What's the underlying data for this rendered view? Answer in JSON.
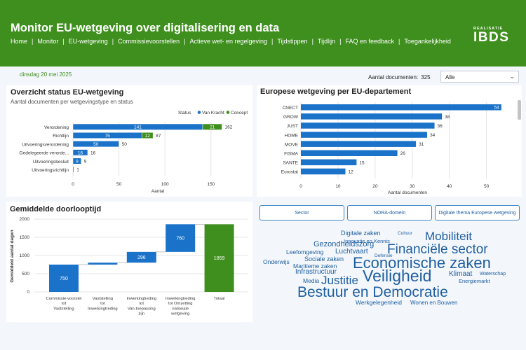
{
  "header": {
    "title": "Monitor EU-wetgeving over digitalisering en data",
    "nav": [
      "Home",
      "Monitor",
      "EU-wetgeving",
      "Commissievoorstellen",
      "Actieve wet- en regelgeving",
      "Tijdstippen",
      "Tijdlijn",
      "FAQ en feedback",
      "Toegankelijkheid"
    ],
    "logo_small": "REALISATIE",
    "logo_big": "IBDS"
  },
  "date": "dinsdag 20 mei 2025",
  "doc_count": {
    "label": "Aantal documenten:",
    "value": "325"
  },
  "filter": {
    "selected": "Alle"
  },
  "status_panel": {
    "title": "Overzicht status EU-wetgeving",
    "subtitle": "Aantal documenten per wetgevingstype en status",
    "legend_title": "Status",
    "xlabel": "Aantal"
  },
  "dept_panel": {
    "title": "Europese wetgeving per EU-departement",
    "xlabel": "Aantal documenten"
  },
  "lead_panel": {
    "title": "Gemiddelde doorlooptijd",
    "ylabel": "Gemiddeld aantal dagen"
  },
  "buttons": [
    "Sector",
    "NORA-domein",
    "Digitale thema Europese wetgeving"
  ],
  "colors": {
    "brand_green": "#3f8f1f",
    "van_kracht": "#1a73c8",
    "concept": "#3f8f1f",
    "total": "#3f8f1f",
    "wc_blue": "#1f5ea0"
  },
  "chart_data": [
    {
      "type": "bar",
      "orientation": "horizontal",
      "stacked": true,
      "categories": [
        "Verordening",
        "Richtlijn",
        "Uitvoeringsverordening",
        "Gedelegeerde verorde...",
        "Uitvoeringsbesluit",
        "Uitvoeringsrichtlijn"
      ],
      "series": [
        {
          "name": "Van Kracht",
          "values": [
            141,
            75,
            50,
            16,
            9,
            1
          ]
        },
        {
          "name": "Concept",
          "values": [
            21,
            12,
            0,
            0,
            0,
            0
          ]
        }
      ],
      "totals": [
        162,
        87,
        50,
        16,
        9,
        1
      ],
      "xticks": [
        0,
        50,
        100,
        150
      ],
      "xlim": [
        0,
        170
      ],
      "xlabel": "Aantal",
      "legend_position": "top-right"
    },
    {
      "type": "bar",
      "orientation": "horizontal",
      "categories": [
        "CNECT",
        "GROW",
        "JUST",
        "HOME",
        "MOVE",
        "FISMA",
        "SANTE",
        "Eurostat"
      ],
      "values": [
        54,
        38,
        36,
        34,
        31,
        26,
        15,
        12
      ],
      "xticks": [
        0,
        10,
        20,
        30,
        40,
        50
      ],
      "xlim": [
        0,
        58
      ],
      "xlabel": "Aantal documenten"
    },
    {
      "type": "bar",
      "subtype": "waterfall",
      "categories": [
        "Commissie-voorstel tot Vaststelling",
        "Vaststelling tot Inwerkingtreding",
        "Inwerkingtreding tot Van-toepassing zijn",
        "Inwerkingtreding tot Omzetting nationale wetgeving",
        "Totaal"
      ],
      "values": [
        750,
        53,
        296,
        760,
        1859
      ],
      "value_labels": [
        "750",
        "",
        "296",
        "760",
        "1859"
      ],
      "yticks": [
        0,
        500,
        1000,
        1500,
        2000
      ],
      "ylim": [
        0,
        2000
      ],
      "ylabel": "Gemiddeld aantal dagen"
    }
  ],
  "wordcloud": [
    {
      "text": "Digitale zaken",
      "size": 9,
      "color": "#1f5ea0"
    },
    {
      "text": "Cultuur",
      "size": 6.5,
      "color": "#1f5ea0"
    },
    {
      "text": "Mobiliteit",
      "size": 17,
      "color": "#1f5ea0"
    },
    {
      "text": "Innovatie en Kennis",
      "size": 7.5,
      "color": "#1f5ea0"
    },
    {
      "text": "Gezondheidszorg",
      "size": 11,
      "color": "#1f5ea0"
    },
    {
      "text": "Financiële sector",
      "size": 19,
      "color": "#1f5ea0"
    },
    {
      "text": "Leefomgeving",
      "size": 8.5,
      "color": "#1f5ea0"
    },
    {
      "text": "Luchtvaart",
      "size": 10,
      "color": "#1f5ea0"
    },
    {
      "text": "Defensie",
      "size": 6.5,
      "color": "#1f5ea0"
    },
    {
      "text": "Sociale zaken",
      "size": 9,
      "color": "#1f5ea0"
    },
    {
      "text": "Onderwijs",
      "size": 8.5,
      "color": "#1f5ea0"
    },
    {
      "text": "Economische zaken",
      "size": 22,
      "color": "#1f5ea0"
    },
    {
      "text": "Maritieme zaken",
      "size": 8.5,
      "color": "#1f5ea0"
    },
    {
      "text": "Infrastructuur",
      "size": 10,
      "color": "#1f5ea0"
    },
    {
      "text": "Veiligheid",
      "size": 23,
      "color": "#1f5ea0"
    },
    {
      "text": "Klimaat",
      "size": 10,
      "color": "#1f5ea0"
    },
    {
      "text": "Waterschap",
      "size": 7,
      "color": "#1f5ea0"
    },
    {
      "text": "Media",
      "size": 8.5,
      "color": "#1f5ea0"
    },
    {
      "text": "Justitie",
      "size": 17,
      "color": "#1f5ea0"
    },
    {
      "text": "Energiemarkt",
      "size": 7.5,
      "color": "#1f5ea0"
    },
    {
      "text": "Bestuur en Democratie",
      "size": 21,
      "color": "#1f5ea0"
    },
    {
      "text": "Werkgelegenheid",
      "size": 8.5,
      "color": "#1f5ea0"
    },
    {
      "text": "Wonen en Bouwen",
      "size": 8,
      "color": "#1f5ea0"
    }
  ]
}
